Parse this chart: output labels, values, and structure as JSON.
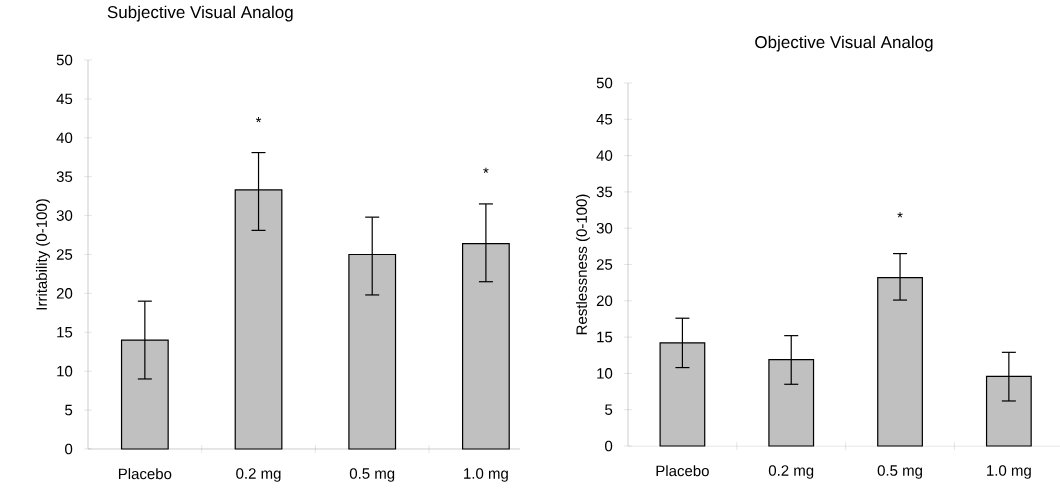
{
  "chart_data": [
    {
      "type": "bar",
      "title": "Subjective Visual Analog",
      "ylabel": "Irritability (0-100)",
      "categories": [
        "Placebo",
        "0.2 mg",
        "0.5 mg",
        "1.0 mg"
      ],
      "values": [
        14,
        33.3,
        25,
        26.4
      ],
      "errors": [
        [
          9,
          19
        ],
        [
          28.1,
          38.1
        ],
        [
          19.8,
          29.8
        ],
        [
          21.5,
          31.5
        ]
      ],
      "color": "#c0c0c0",
      "ylim": [
        0,
        50
      ],
      "yticks": [
        0,
        5,
        10,
        15,
        20,
        25,
        30,
        35,
        40,
        45,
        50
      ],
      "annotations": [
        "*",
        "*"
      ]
    },
    {
      "type": "bar",
      "title": "Objective Visual Analog",
      "ylabel": "Restlessness (0-100)",
      "categories": [
        "Placebo",
        "0.2 mg",
        "0.5 mg",
        "1.0 mg"
      ],
      "values": [
        14.2,
        11.9,
        23.2,
        9.6
      ],
      "errors": [
        [
          10.8,
          17.6
        ],
        [
          8.5,
          15.2
        ],
        [
          20.1,
          26.5
        ],
        [
          6.2,
          12.9
        ]
      ],
      "color": "#c0c0c0",
      "ylim": [
        0,
        50
      ],
      "yticks": [
        0,
        5,
        10,
        15,
        20,
        25,
        30,
        35,
        40,
        45,
        50
      ],
      "annotations": [
        "*"
      ]
    }
  ]
}
